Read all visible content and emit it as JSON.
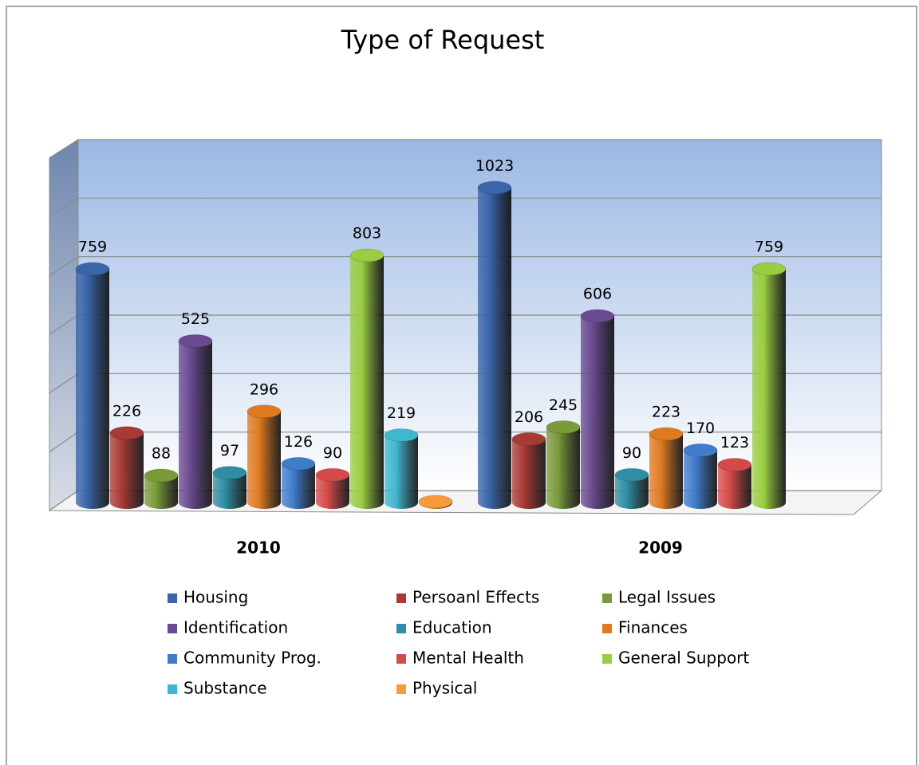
{
  "chart_data": {
    "type": "bar",
    "title": "Type of Request",
    "categories": [
      "2010",
      "2009"
    ],
    "ylim": [
      0,
      1200
    ],
    "yticks": [
      0,
      200,
      400,
      600,
      800,
      1000,
      1200
    ],
    "grid": true,
    "series": [
      {
        "name": "Housing",
        "color": "#3a65a8",
        "values": [
          759,
          1023
        ]
      },
      {
        "name": "Persoanl Effects",
        "color": "#a83a35",
        "values": [
          226,
          206
        ]
      },
      {
        "name": "Legal Issues",
        "color": "#7a9a3a",
        "values": [
          88,
          245
        ]
      },
      {
        "name": "Identification",
        "color": "#6a4a90",
        "values": [
          525,
          606
        ]
      },
      {
        "name": "Education",
        "color": "#2f8ea3",
        "values": [
          97,
          90
        ]
      },
      {
        "name": "Finances",
        "color": "#e07a20",
        "values": [
          296,
          223
        ]
      },
      {
        "name": "Community Prog.",
        "color": "#3f7ccc",
        "values": [
          126,
          170
        ]
      },
      {
        "name": "Mental Health",
        "color": "#d44a48",
        "values": [
          90,
          123
        ]
      },
      {
        "name": "General Support",
        "color": "#9acd40",
        "values": [
          803,
          759
        ]
      },
      {
        "name": "Substance",
        "color": "#3fb7cf",
        "values": [
          219,
          null
        ]
      },
      {
        "name": "Physical",
        "color": "#f79a3a",
        "values": [
          3,
          null
        ],
        "value_labels": [
          null,
          null
        ]
      }
    ]
  }
}
